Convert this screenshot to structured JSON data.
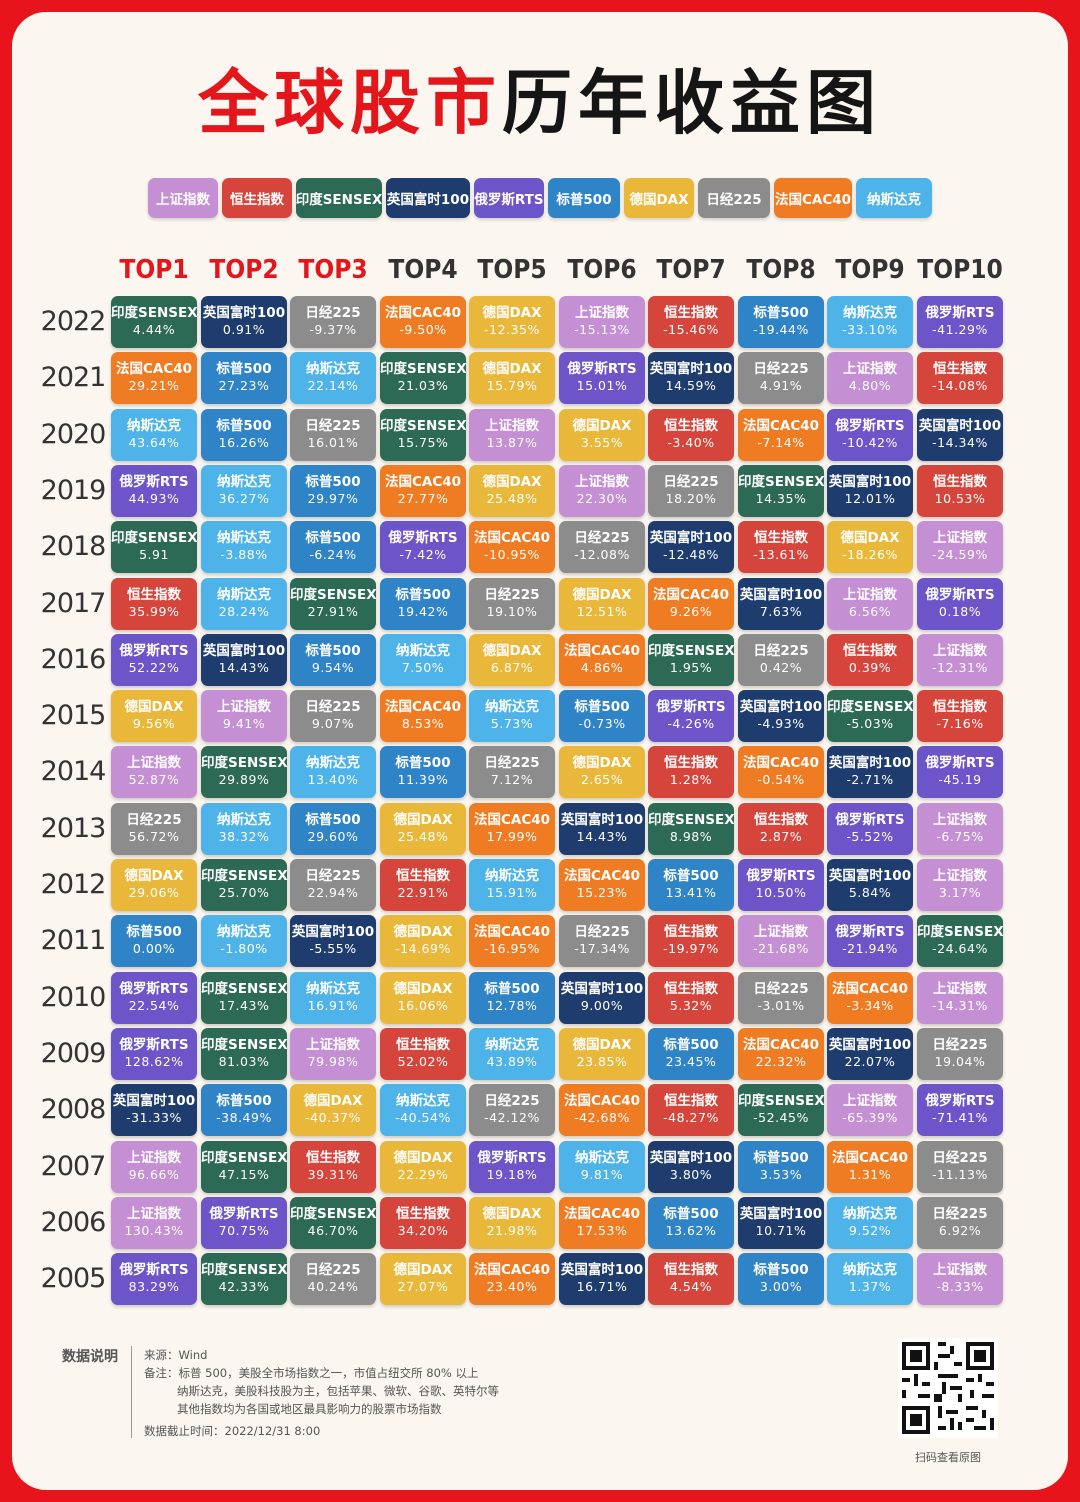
{
  "title_red": "全球股市",
  "title_black": "历年收益图",
  "legend": [
    {
      "name": "上证指数",
      "color": "#c48fd3"
    },
    {
      "name": "恒生指数",
      "color": "#d6453c"
    },
    {
      "name": "印度SENSEX",
      "color": "#2c6a55"
    },
    {
      "name": "英国富时100",
      "color": "#1e3d6e"
    },
    {
      "name": "俄罗斯RTS",
      "color": "#6c55c8"
    },
    {
      "name": "标普500",
      "color": "#2f84c7"
    },
    {
      "name": "德国DAX",
      "color": "#e9b73a"
    },
    {
      "name": "日经225",
      "color": "#8c8c8c"
    },
    {
      "name": "法国CAC40",
      "color": "#ef7b22"
    },
    {
      "name": "纳斯达克",
      "color": "#4db3e8"
    }
  ],
  "columns": [
    "TOP1",
    "TOP2",
    "TOP3",
    "TOP4",
    "TOP5",
    "TOP6",
    "TOP7",
    "TOP8",
    "TOP9",
    "TOP10"
  ],
  "chart_data": {
    "type": "table",
    "title": "全球股市历年收益图",
    "rows": [
      {
        "year": "2022",
        "cells": [
          [
            "印度SENSEX",
            "4.44%"
          ],
          [
            "英国富时100",
            "0.91%"
          ],
          [
            "日经225",
            "-9.37%"
          ],
          [
            "法国CAC40",
            "-9.50%"
          ],
          [
            "德国DAX",
            "-12.35%"
          ],
          [
            "上证指数",
            "-15.13%"
          ],
          [
            "恒生指数",
            "-15.46%"
          ],
          [
            "标普500",
            "-19.44%"
          ],
          [
            "纳斯达克",
            "-33.10%"
          ],
          [
            "俄罗斯RTS",
            "-41.29%"
          ]
        ]
      },
      {
        "year": "2021",
        "cells": [
          [
            "法国CAC40",
            "29.21%"
          ],
          [
            "标普500",
            "27.23%"
          ],
          [
            "纳斯达克",
            "22.14%"
          ],
          [
            "印度SENSEX",
            "21.03%"
          ],
          [
            "德国DAX",
            "15.79%"
          ],
          [
            "俄罗斯RTS",
            "15.01%"
          ],
          [
            "英国富时100",
            "14.59%"
          ],
          [
            "日经225",
            "4.91%"
          ],
          [
            "上证指数",
            "4.80%"
          ],
          [
            "恒生指数",
            "-14.08%"
          ]
        ]
      },
      {
        "year": "2020",
        "cells": [
          [
            "纳斯达克",
            "43.64%"
          ],
          [
            "标普500",
            "16.26%"
          ],
          [
            "日经225",
            "16.01%"
          ],
          [
            "印度SENSEX",
            "15.75%"
          ],
          [
            "上证指数",
            "13.87%"
          ],
          [
            "德国DAX",
            "3.55%"
          ],
          [
            "恒生指数",
            "-3.40%"
          ],
          [
            "法国CAC40",
            "-7.14%"
          ],
          [
            "俄罗斯RTS",
            "-10.42%"
          ],
          [
            "英国富时100",
            "-14.34%"
          ]
        ]
      },
      {
        "year": "2019",
        "cells": [
          [
            "俄罗斯RTS",
            "44.93%"
          ],
          [
            "纳斯达克",
            "36.27%"
          ],
          [
            "标普500",
            "29.97%"
          ],
          [
            "法国CAC40",
            "27.77%"
          ],
          [
            "德国DAX",
            "25.48%"
          ],
          [
            "上证指数",
            "22.30%"
          ],
          [
            "日经225",
            "18.20%"
          ],
          [
            "印度SENSEX",
            "14.35%"
          ],
          [
            "英国富时100",
            "12.01%"
          ],
          [
            "恒生指数",
            "10.53%"
          ]
        ]
      },
      {
        "year": "2018",
        "cells": [
          [
            "印度SENSEX",
            "5.91"
          ],
          [
            "纳斯达克",
            "-3.88%"
          ],
          [
            "标普500",
            "-6.24%"
          ],
          [
            "俄罗斯RTS",
            "-7.42%"
          ],
          [
            "法国CAC40",
            "-10.95%"
          ],
          [
            "日经225",
            "-12.08%"
          ],
          [
            "英国富时100",
            "-12.48%"
          ],
          [
            "恒生指数",
            "-13.61%"
          ],
          [
            "德国DAX",
            "-18.26%"
          ],
          [
            "上证指数",
            "-24.59%"
          ]
        ]
      },
      {
        "year": "2017",
        "cells": [
          [
            "恒生指数",
            "35.99%"
          ],
          [
            "纳斯达克",
            "28.24%"
          ],
          [
            "印度SENSEX",
            "27.91%"
          ],
          [
            "标普500",
            "19.42%"
          ],
          [
            "日经225",
            "19.10%"
          ],
          [
            "德国DAX",
            "12.51%"
          ],
          [
            "法国CAC40",
            "9.26%"
          ],
          [
            "英国富时100",
            "7.63%"
          ],
          [
            "上证指数",
            "6.56%"
          ],
          [
            "俄罗斯RTS",
            "0.18%"
          ]
        ]
      },
      {
        "year": "2016",
        "cells": [
          [
            "俄罗斯RTS",
            "52.22%"
          ],
          [
            "英国富时100",
            "14.43%"
          ],
          [
            "标普500",
            "9.54%"
          ],
          [
            "纳斯达克",
            "7.50%"
          ],
          [
            "德国DAX",
            "6.87%"
          ],
          [
            "法国CAC40",
            "4.86%"
          ],
          [
            "印度SENSEX",
            "1.95%"
          ],
          [
            "日经225",
            "0.42%"
          ],
          [
            "恒生指数",
            "0.39%"
          ],
          [
            "上证指数",
            "-12.31%"
          ]
        ]
      },
      {
        "year": "2015",
        "cells": [
          [
            "德国DAX",
            "9.56%"
          ],
          [
            "上证指数",
            "9.41%"
          ],
          [
            "日经225",
            "9.07%"
          ],
          [
            "法国CAC40",
            "8.53%"
          ],
          [
            "纳斯达克",
            "5.73%"
          ],
          [
            "标普500",
            "-0.73%"
          ],
          [
            "俄罗斯RTS",
            "-4.26%"
          ],
          [
            "英国富时100",
            "-4.93%"
          ],
          [
            "印度SENSEX",
            "-5.03%"
          ],
          [
            "恒生指数",
            "-7.16%"
          ]
        ]
      },
      {
        "year": "2014",
        "cells": [
          [
            "上证指数",
            "52.87%"
          ],
          [
            "印度SENSEX",
            "29.89%"
          ],
          [
            "纳斯达克",
            "13.40%"
          ],
          [
            "标普500",
            "11.39%"
          ],
          [
            "日经225",
            "7.12%"
          ],
          [
            "德国DAX",
            "2.65%"
          ],
          [
            "恒生指数",
            "1.28%"
          ],
          [
            "法国CAC40",
            "-0.54%"
          ],
          [
            "英国富时100",
            "-2.71%"
          ],
          [
            "俄罗斯RTS",
            "-45.19"
          ]
        ]
      },
      {
        "year": "2013",
        "cells": [
          [
            "日经225",
            "56.72%"
          ],
          [
            "纳斯达克",
            "38.32%"
          ],
          [
            "标普500",
            "29.60%"
          ],
          [
            "德国DAX",
            "25.48%"
          ],
          [
            "法国CAC40",
            "17.99%"
          ],
          [
            "英国富时100",
            "14.43%"
          ],
          [
            "印度SENSEX",
            "8.98%"
          ],
          [
            "恒生指数",
            "2.87%"
          ],
          [
            "俄罗斯RTS",
            "-5.52%"
          ],
          [
            "上证指数",
            "-6.75%"
          ]
        ]
      },
      {
        "year": "2012",
        "cells": [
          [
            "德国DAX",
            "29.06%"
          ],
          [
            "印度SENSEX",
            "25.70%"
          ],
          [
            "日经225",
            "22.94%"
          ],
          [
            "恒生指数",
            "22.91%"
          ],
          [
            "纳斯达克",
            "15.91%"
          ],
          [
            "法国CAC40",
            "15.23%"
          ],
          [
            "标普500",
            "13.41%"
          ],
          [
            "俄罗斯RTS",
            "10.50%"
          ],
          [
            "英国富时100",
            "5.84%"
          ],
          [
            "上证指数",
            "3.17%"
          ]
        ]
      },
      {
        "year": "2011",
        "cells": [
          [
            "标普500",
            "0.00%"
          ],
          [
            "纳斯达克",
            "-1.80%"
          ],
          [
            "英国富时100",
            "-5.55%"
          ],
          [
            "德国DAX",
            "-14.69%"
          ],
          [
            "法国CAC40",
            "-16.95%"
          ],
          [
            "日经225",
            "-17.34%"
          ],
          [
            "恒生指数",
            "-19.97%"
          ],
          [
            "上证指数",
            "-21.68%"
          ],
          [
            "俄罗斯RTS",
            "-21.94%"
          ],
          [
            "印度SENSEX",
            "-24.64%"
          ]
        ]
      },
      {
        "year": "2010",
        "cells": [
          [
            "俄罗斯RTS",
            "22.54%"
          ],
          [
            "印度SENSEX",
            "17.43%"
          ],
          [
            "纳斯达克",
            "16.91%"
          ],
          [
            "德国DAX",
            "16.06%"
          ],
          [
            "标普500",
            "12.78%"
          ],
          [
            "英国富时100",
            "9.00%"
          ],
          [
            "恒生指数",
            "5.32%"
          ],
          [
            "日经225",
            "-3.01%"
          ],
          [
            "法国CAC40",
            "-3.34%"
          ],
          [
            "上证指数",
            "-14.31%"
          ]
        ]
      },
      {
        "year": "2009",
        "cells": [
          [
            "俄罗斯RTS",
            "128.62%"
          ],
          [
            "印度SENSEX",
            "81.03%"
          ],
          [
            "上证指数",
            "79.98%"
          ],
          [
            "恒生指数",
            "52.02%"
          ],
          [
            "纳斯达克",
            "43.89%"
          ],
          [
            "德国DAX",
            "23.85%"
          ],
          [
            "标普500",
            "23.45%"
          ],
          [
            "法国CAC40",
            "22.32%"
          ],
          [
            "英国富时100",
            "22.07%"
          ],
          [
            "日经225",
            "19.04%"
          ]
        ]
      },
      {
        "year": "2008",
        "cells": [
          [
            "英国富时100",
            "-31.33%"
          ],
          [
            "标普500",
            "-38.49%"
          ],
          [
            "德国DAX",
            "-40.37%"
          ],
          [
            "纳斯达克",
            "-40.54%"
          ],
          [
            "日经225",
            "-42.12%"
          ],
          [
            "法国CAC40",
            "-42.68%"
          ],
          [
            "恒生指数",
            "-48.27%"
          ],
          [
            "印度SENSEX",
            "-52.45%"
          ],
          [
            "上证指数",
            "-65.39%"
          ],
          [
            "俄罗斯RTS",
            "-71.41%"
          ]
        ]
      },
      {
        "year": "2007",
        "cells": [
          [
            "上证指数",
            "96.66%"
          ],
          [
            "印度SENSEX",
            "47.15%"
          ],
          [
            "恒生指数",
            "39.31%"
          ],
          [
            "德国DAX",
            "22.29%"
          ],
          [
            "俄罗斯RTS",
            "19.18%"
          ],
          [
            "纳斯达克",
            "9.81%"
          ],
          [
            "英国富时100",
            "3.80%"
          ],
          [
            "标普500",
            "3.53%"
          ],
          [
            "法国CAC40",
            "1.31%"
          ],
          [
            "日经225",
            "-11.13%"
          ]
        ]
      },
      {
        "year": "2006",
        "cells": [
          [
            "上证指数",
            "130.43%"
          ],
          [
            "俄罗斯RTS",
            "70.75%"
          ],
          [
            "印度SENSEX",
            "46.70%"
          ],
          [
            "恒生指数",
            "34.20%"
          ],
          [
            "德国DAX",
            "21.98%"
          ],
          [
            "法国CAC40",
            "17.53%"
          ],
          [
            "标普500",
            "13.62%"
          ],
          [
            "英国富时100",
            "10.71%"
          ],
          [
            "纳斯达克",
            "9.52%"
          ],
          [
            "日经225",
            "6.92%"
          ]
        ]
      },
      {
        "year": "2005",
        "cells": [
          [
            "俄罗斯RTS",
            "83.29%"
          ],
          [
            "印度SENSEX",
            "42.33%"
          ],
          [
            "日经225",
            "40.24%"
          ],
          [
            "德国DAX",
            "27.07%"
          ],
          [
            "法国CAC40",
            "23.40%"
          ],
          [
            "英国富时100",
            "16.71%"
          ],
          [
            "恒生指数",
            "4.54%"
          ],
          [
            "标普500",
            "3.00%"
          ],
          [
            "纳斯达克",
            "1.37%"
          ],
          [
            "上证指数",
            "-8.33%"
          ]
        ]
      }
    ]
  },
  "notes": {
    "heading": "数据说明",
    "source": "来源：Wind",
    "note1": "备注：标普 500，美股全市场指数之一，市值占纽交所 80% 以上",
    "note2": "纳斯达克，美股科技股为主，包括苹果、微软、谷歌、英特尔等",
    "note3": "其他指数均为各国或地区最具影响力的股票市场指数",
    "date": "数据截止时间：2022/12/31 8:00"
  },
  "qr_caption": "扫码查看原图"
}
